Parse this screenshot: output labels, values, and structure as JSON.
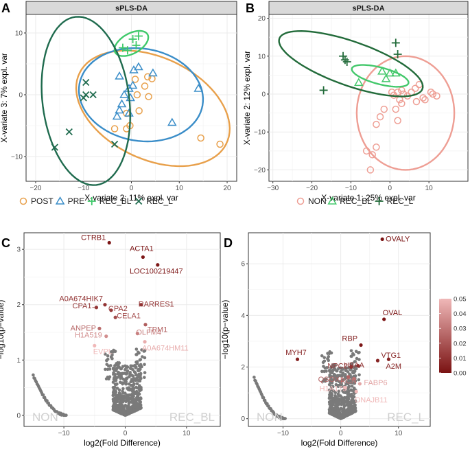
{
  "colors": {
    "POST": "#E8A04B",
    "PRE": "#3A8DC8",
    "REC_BL_a": "#3FC96A",
    "REC_L_a": "#1F6B4E",
    "NON": "#EE9E94",
    "REC_BL_b": "#43C86B",
    "REC_L_b": "#226B3A",
    "grey": "#7a7a7a",
    "strip": "#d9d9d9",
    "grid": "#ebebeb"
  },
  "chart_data": [
    {
      "panel": "A",
      "type": "scatter",
      "title": "sPLS-DA",
      "xlabel": "X-variate 2: 11% expl. var",
      "ylabel": "X-variate 3: 7% expl. var",
      "xlim": [
        -22,
        22
      ],
      "ylim": [
        -14,
        13
      ],
      "xticks": [
        -20,
        -10,
        0,
        10,
        20
      ],
      "yticks": [
        -10,
        0,
        10
      ],
      "legend": [
        "POST",
        "PRE",
        "REC_BL",
        "REC_L"
      ],
      "legend_position": "bottom",
      "series": [
        {
          "name": "POST",
          "marker": "circle",
          "color_key": "POST",
          "points": [
            [
              -1,
              -3
            ],
            [
              -3.5,
              -5.5
            ],
            [
              -1,
              -5.5
            ],
            [
              -0.3,
              -5
            ],
            [
              1.6,
              -2.6
            ],
            [
              1.2,
              0
            ],
            [
              2.8,
              1.4
            ],
            [
              3.4,
              2.9
            ],
            [
              4.3,
              2.6
            ],
            [
              0.8,
              2.5
            ],
            [
              3.6,
              -0.3
            ],
            [
              14.5,
              -7
            ],
            [
              18.5,
              -8
            ]
          ],
          "ellipse": {
            "cx": 4.5,
            "cy": -2.2,
            "rx": 16.5,
            "ry": 8.5,
            "angle": -16
          }
        },
        {
          "name": "PRE",
          "marker": "triangle",
          "color_key": "PRE",
          "points": [
            [
              0.5,
              4
            ],
            [
              1.5,
              4.5
            ],
            [
              4.5,
              3.5
            ],
            [
              -2.5,
              3
            ],
            [
              0.3,
              1.5
            ],
            [
              -0.5,
              1
            ],
            [
              -1.5,
              0
            ],
            [
              -0.2,
              -0.5
            ],
            [
              -2,
              -1.5
            ],
            [
              -2.5,
              -2.5
            ],
            [
              -0.5,
              -3
            ],
            [
              -3,
              -3.5
            ],
            [
              8.5,
              -4.5
            ],
            [
              14,
              1
            ]
          ],
          "ellipse": {
            "cx": 2,
            "cy": 0,
            "rx": 13,
            "ry": 7.5,
            "angle": -5
          }
        },
        {
          "name": "REC_BL",
          "marker": "plus",
          "color_key": "REC_BL_a",
          "points": [
            [
              0.3,
              9
            ],
            [
              1,
              8
            ],
            [
              1.5,
              9.5
            ],
            [
              -1.8,
              7.6
            ],
            [
              -0.8,
              7.2
            ]
          ],
          "ellipse": {
            "cx": 0,
            "cy": 8.3,
            "rx": 3.7,
            "ry": 1.7,
            "angle": 20
          }
        },
        {
          "name": "REC_L",
          "marker": "x",
          "color_key": "REC_L_a",
          "points": [
            [
              -9.5,
              2
            ],
            [
              -9.5,
              0
            ],
            [
              -10,
              -0.5
            ],
            [
              -8,
              0
            ],
            [
              -13,
              -6
            ],
            [
              -16,
              -8.5
            ],
            [
              -3.5,
              -8
            ]
          ],
          "ellipse": {
            "cx": -9.5,
            "cy": -1,
            "rx": 9,
            "ry": 13.8,
            "angle": 12
          }
        }
      ]
    },
    {
      "panel": "B",
      "type": "scatter",
      "title": "sPLS-DA",
      "xlabel": "X-variate 1: 25% expl. var",
      "ylabel": "X-variate 2: 12% expl. var",
      "xlim": [
        -31,
        20
      ],
      "ylim": [
        -23,
        21
      ],
      "xticks": [
        -30,
        -20,
        -10,
        0,
        10
      ],
      "yticks": [
        -20,
        -10,
        0,
        10,
        20
      ],
      "legend": [
        "NON",
        "REC_BL",
        "REC_L"
      ],
      "legend_position": "bottom",
      "series": [
        {
          "name": "NON",
          "marker": "circle",
          "color_key": "NON",
          "points": [
            [
              0.5,
              0.5
            ],
            [
              1,
              -0.3
            ],
            [
              2,
              0.5
            ],
            [
              3,
              1
            ],
            [
              3.5,
              0
            ],
            [
              2.5,
              -1.5
            ],
            [
              4.5,
              -0.5
            ],
            [
              5.5,
              0.5
            ],
            [
              6.5,
              1.5
            ],
            [
              7.5,
              2.5
            ],
            [
              8.5,
              -1
            ],
            [
              9,
              -1.5
            ],
            [
              10.5,
              0.5
            ],
            [
              12,
              -0.5
            ],
            [
              11,
              0
            ],
            [
              6.8,
              -2
            ],
            [
              3,
              -2.5
            ],
            [
              1.5,
              -4
            ],
            [
              -1.5,
              -4
            ],
            [
              -2.5,
              -6
            ],
            [
              -3.5,
              -8
            ],
            [
              -6,
              -15
            ],
            [
              -3.5,
              -14
            ],
            [
              -4.5,
              -16
            ],
            [
              -5,
              -20
            ],
            [
              2,
              -7
            ]
          ],
          "ellipse": {
            "cx": 4,
            "cy": -5,
            "rx": 12.5,
            "ry": 15,
            "angle": 0
          }
        },
        {
          "name": "REC_BL",
          "marker": "triangle",
          "color_key": "REC_BL_b",
          "points": [
            [
              -2,
              6
            ],
            [
              1.5,
              5.5
            ],
            [
              -1,
              4
            ],
            [
              -8,
              3
            ],
            [
              0,
              5.5
            ]
          ],
          "ellipse": {
            "cx": -2.5,
            "cy": 4.8,
            "rx": 7.5,
            "ry": 2.2,
            "angle": -15
          }
        },
        {
          "name": "REC_L",
          "marker": "plus",
          "color_key": "REC_L_b",
          "points": [
            [
              -12,
              10
            ],
            [
              -11.5,
              9
            ],
            [
              -11,
              8.5
            ],
            [
              1.5,
              13.5
            ],
            [
              2,
              10.5
            ],
            [
              -17,
              1
            ]
          ],
          "ellipse": {
            "cx": -10,
            "cy": 8,
            "rx": 19.5,
            "ry": 5.8,
            "angle": -20
          }
        }
      ]
    },
    {
      "panel": "C",
      "type": "scatter",
      "subtype": "volcano",
      "xlabel": "log2(Fold Difference)",
      "ylabel": "−log10(p−value)",
      "xlim": [
        -16.5,
        15.5
      ],
      "ylim": [
        -0.2,
        3.3
      ],
      "xticks": [
        -10,
        0,
        10
      ],
      "yticks": [
        0,
        1,
        2,
        3
      ],
      "corner_labels": [
        "NON",
        "REC_BL"
      ],
      "labeled_points": [
        {
          "label": "CTRB1",
          "x": -2.6,
          "y": 3.12,
          "p": 0.0008
        },
        {
          "label": "ACTA1",
          "x": 2.9,
          "y": 2.86,
          "p": 0.0014
        },
        {
          "label": "LOC100219447",
          "x": 5.3,
          "y": 2.72,
          "p": 0.0019
        },
        {
          "label": "A0A674HIK7",
          "x": -3.3,
          "y": 2.0,
          "p": 0.01
        },
        {
          "label": "CPA1",
          "x": -4.7,
          "y": 1.95,
          "p": 0.0112
        },
        {
          "label": "CPA2",
          "x": -2.3,
          "y": 1.9,
          "p": 0.0126
        },
        {
          "label": "RARRES1",
          "x": 2.6,
          "y": 2.0,
          "p": 0.01
        },
        {
          "label": "CELA1",
          "x": -1.6,
          "y": 1.77,
          "p": 0.017
        },
        {
          "label": "ANPEP",
          "x": -4.2,
          "y": 1.57,
          "p": 0.0269
        },
        {
          "label": "TPM1",
          "x": 3.3,
          "y": 1.64,
          "p": 0.0229
        },
        {
          "label": "OLFM4",
          "x": 2.0,
          "y": 1.48,
          "p": 0.0331
        },
        {
          "label": "H1A519",
          "x": -3.1,
          "y": 1.43,
          "p": 0.0372
        },
        {
          "label": "EVPL",
          "x": -5.0,
          "y": 1.26,
          "p": 0.055
        },
        {
          "label": "A0A674HM11",
          "x": 3.2,
          "y": 1.33,
          "p": 0.0468
        }
      ]
    },
    {
      "panel": "D",
      "type": "scatter",
      "subtype": "volcano",
      "xlabel": "log2(Fold Difference)",
      "ylabel": "−log10(p−value)",
      "xlim": [
        -16,
        15.5
      ],
      "ylim": [
        -0.3,
        7.2
      ],
      "xticks": [
        -10,
        0,
        10
      ],
      "yticks": [
        0,
        2,
        4,
        6
      ],
      "corner_labels": [
        "NON",
        "REC_L"
      ],
      "colorbar": {
        "min": 0,
        "max": 0.05,
        "ticks": [
          "0.05",
          "0.04",
          "0.03",
          "0.02",
          "0.01",
          "0.00"
        ]
      },
      "labeled_points": [
        {
          "label": "OVALY",
          "x": 7.2,
          "y": 6.95,
          "p": 0.0
        },
        {
          "label": "OVAL",
          "x": 7.5,
          "y": 3.85,
          "p": 0.0001
        },
        {
          "label": "RBP",
          "x": 3.5,
          "y": 2.85,
          "p": 0.0014
        },
        {
          "label": "VTG1",
          "x": 6.4,
          "y": 2.25,
          "p": 0.0056
        },
        {
          "label": "MYH7",
          "x": -7.5,
          "y": 2.3,
          "p": 0.005
        },
        {
          "label": "A2M",
          "x": 8.3,
          "y": 2.3,
          "p": 0.005
        },
        {
          "label": "HBAA",
          "x": 3.0,
          "y": 2.05,
          "p": 0.0089
        },
        {
          "label": "NPC2",
          "x": 1.8,
          "y": 2.0,
          "p": 0.01
        },
        {
          "label": "QSOX1",
          "x": 1.3,
          "y": 1.62,
          "p": 0.024
        },
        {
          "label": "RCN",
          "x": 2.3,
          "y": 1.55,
          "p": 0.0282
        },
        {
          "label": "FABP6",
          "x": 3.3,
          "y": 1.35,
          "p": 0.0447
        },
        {
          "label": "H1A179",
          "x": 0.8,
          "y": 1.2,
          "p": 0.0631
        },
        {
          "label": "DNAJB11",
          "x": 2.7,
          "y": 1.05,
          "p": 0.0891
        }
      ]
    }
  ],
  "panels": {
    "A": {
      "letter": "A"
    },
    "B": {
      "letter": "B"
    },
    "C": {
      "letter": "C"
    },
    "D": {
      "letter": "D"
    }
  }
}
